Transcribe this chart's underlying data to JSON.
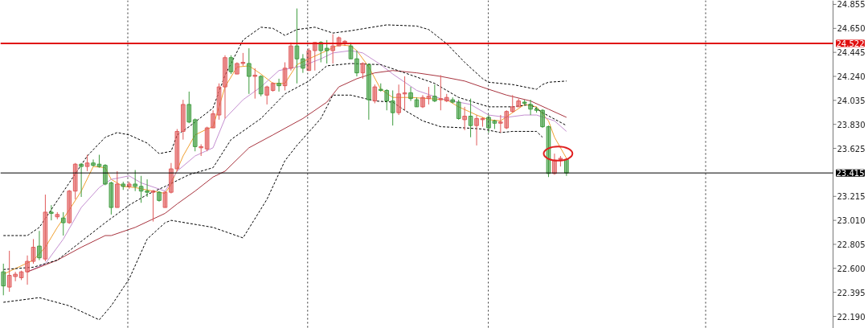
{
  "chart_data": {
    "type": "candlestick",
    "categories": [
      null,
      null,
      null,
      null,
      null,
      null,
      null,
      null,
      null,
      null,
      null,
      null,
      null,
      null,
      null,
      null,
      null,
      null,
      null,
      null,
      null,
      null,
      null,
      null,
      null,
      null,
      null,
      null,
      null,
      null,
      null,
      null,
      null,
      null,
      null,
      null,
      null,
      null,
      null,
      null,
      null,
      null,
      null,
      null,
      null,
      null,
      null,
      null,
      null,
      null,
      null,
      null,
      null,
      null,
      null,
      null,
      null,
      null,
      null,
      null,
      null,
      null,
      null,
      null,
      null,
      null,
      null,
      null,
      null,
      null,
      null,
      null,
      null,
      null,
      null,
      null,
      null,
      null,
      null,
      null,
      null,
      null,
      null,
      null,
      null,
      null,
      null,
      null,
      null,
      null,
      null,
      null,
      null,
      null,
      null,
      null,
      null,
      null,
      null,
      null,
      null,
      null,
      null,
      null,
      null,
      null,
      null,
      null,
      null,
      null,
      null,
      null,
      null,
      null,
      null,
      null,
      null,
      null,
      null,
      null,
      null,
      null,
      null,
      null,
      null,
      null,
      null,
      null,
      null,
      null,
      null,
      null,
      null,
      null,
      null,
      null,
      null,
      null,
      null
    ],
    "ohlc": [
      [
        22.57,
        22.64,
        22.37,
        22.45
      ],
      [
        22.44,
        22.75,
        22.4,
        22.54
      ],
      [
        22.53,
        22.57,
        22.49,
        22.55
      ],
      [
        22.52,
        22.58,
        22.5,
        22.57
      ],
      [
        22.57,
        22.71,
        22.46,
        22.66
      ],
      [
        22.66,
        22.85,
        22.64,
        22.78
      ],
      [
        22.79,
        22.92,
        22.67,
        22.69
      ],
      [
        22.68,
        23.23,
        22.66,
        23.08
      ],
      [
        23.08,
        23.14,
        23.01,
        23.07
      ],
      [
        23.04,
        23.08,
        23.02,
        23.06
      ],
      [
        23.03,
        23.08,
        22.88,
        22.99
      ],
      [
        22.99,
        23.27,
        22.98,
        23.26
      ],
      [
        23.26,
        23.5,
        23.19,
        23.49
      ],
      [
        23.49,
        23.5,
        23.21,
        23.47
      ],
      [
        23.47,
        23.57,
        23.43,
        23.5
      ],
      [
        23.5,
        23.53,
        23.47,
        23.48
      ],
      [
        23.49,
        23.57,
        23.46,
        23.47
      ],
      [
        23.48,
        23.49,
        23.31,
        23.32
      ],
      [
        23.33,
        23.34,
        23.06,
        23.12
      ],
      [
        23.12,
        23.43,
        23.12,
        23.32
      ],
      [
        23.32,
        23.34,
        23.27,
        23.3
      ],
      [
        23.3,
        23.34,
        23.28,
        23.32
      ],
      [
        23.32,
        23.44,
        23.26,
        23.3
      ],
      [
        23.3,
        23.39,
        23.16,
        23.26
      ],
      [
        23.26,
        23.36,
        23.21,
        23.25
      ],
      [
        23.25,
        23.27,
        23.0,
        23.26
      ],
      [
        23.25,
        23.26,
        23.17,
        23.18
      ],
      [
        23.12,
        23.26,
        23.12,
        23.25
      ],
      [
        23.25,
        23.5,
        23.24,
        23.45
      ],
      [
        23.45,
        23.79,
        23.43,
        23.77
      ],
      [
        23.77,
        24.04,
        23.7,
        24.0
      ],
      [
        24.0,
        24.11,
        23.84,
        23.85
      ],
      [
        23.87,
        23.88,
        23.6,
        23.64
      ],
      [
        23.63,
        23.66,
        23.56,
        23.64
      ],
      [
        23.62,
        23.81,
        23.6,
        23.8
      ],
      [
        23.8,
        23.95,
        23.8,
        23.92
      ],
      [
        23.91,
        24.18,
        23.87,
        24.15
      ],
      [
        24.15,
        24.42,
        23.88,
        24.4
      ],
      [
        24.4,
        24.42,
        24.26,
        24.28
      ],
      [
        24.26,
        24.36,
        24.26,
        24.35
      ],
      [
        24.35,
        24.44,
        24.33,
        24.36
      ],
      [
        24.35,
        24.48,
        24.09,
        24.24
      ],
      [
        24.24,
        24.31,
        24.05,
        24.25
      ],
      [
        24.24,
        24.25,
        24.07,
        24.09
      ],
      [
        24.08,
        24.16,
        24.0,
        24.15
      ],
      [
        24.12,
        24.19,
        24.11,
        24.18
      ],
      [
        24.18,
        24.22,
        24.11,
        24.16
      ],
      [
        24.16,
        24.36,
        24.12,
        24.31
      ],
      [
        24.31,
        24.53,
        24.29,
        24.5
      ],
      [
        24.5,
        24.82,
        24.18,
        24.39
      ],
      [
        24.39,
        24.43,
        24.27,
        24.31
      ],
      [
        24.29,
        24.48,
        24.29,
        24.46
      ],
      [
        24.46,
        24.53,
        24.29,
        24.53
      ],
      [
        24.53,
        24.54,
        24.36,
        24.46
      ],
      [
        24.48,
        24.55,
        24.35,
        24.46
      ],
      [
        24.46,
        24.6,
        24.35,
        24.5
      ],
      [
        24.5,
        24.58,
        24.5,
        24.57
      ],
      [
        24.53,
        24.55,
        24.5,
        24.54
      ],
      [
        24.5,
        24.53,
        24.39,
        24.39
      ],
      [
        24.39,
        24.46,
        24.24,
        24.27
      ],
      [
        24.27,
        24.36,
        24.22,
        24.35
      ],
      [
        24.34,
        24.35,
        23.87,
        24.04
      ],
      [
        24.03,
        24.17,
        24.01,
        24.15
      ],
      [
        24.13,
        24.18,
        24.11,
        24.12
      ],
      [
        24.12,
        24.13,
        23.95,
        24.03
      ],
      [
        24.03,
        24.12,
        23.82,
        23.93
      ],
      [
        23.93,
        24.17,
        23.91,
        24.09
      ],
      [
        24.09,
        24.24,
        23.95,
        24.1
      ],
      [
        24.1,
        24.15,
        24.03,
        24.05
      ],
      [
        24.04,
        24.06,
        23.98,
        23.98
      ],
      [
        23.98,
        24.08,
        23.97,
        24.06
      ],
      [
        24.05,
        24.15,
        24.0,
        24.07
      ],
      [
        24.07,
        24.17,
        24.02,
        24.03
      ],
      [
        24.04,
        24.25,
        23.95,
        24.05
      ],
      [
        24.03,
        24.09,
        24.02,
        24.06
      ],
      [
        24.04,
        24.06,
        24.01,
        24.02
      ],
      [
        24.02,
        24.04,
        23.87,
        23.88
      ],
      [
        23.87,
        23.98,
        23.78,
        23.9
      ],
      [
        23.9,
        24.05,
        23.72,
        23.82
      ],
      [
        23.82,
        23.91,
        23.65,
        23.88
      ],
      [
        23.87,
        23.89,
        23.81,
        23.88
      ],
      [
        23.89,
        23.91,
        23.76,
        23.8
      ],
      [
        23.86,
        23.87,
        23.79,
        23.84
      ],
      [
        23.84,
        23.91,
        23.76,
        23.85
      ],
      [
        23.8,
        23.95,
        23.79,
        23.94
      ],
      [
        23.94,
        24.08,
        23.93,
        23.98
      ],
      [
        23.98,
        24.05,
        23.98,
        24.03
      ],
      [
        24.02,
        24.04,
        23.99,
        24.01
      ],
      [
        24.0,
        24.04,
        23.91,
        23.96
      ],
      [
        23.96,
        23.98,
        23.93,
        23.95
      ],
      [
        23.95,
        23.96,
        23.8,
        23.81
      ],
      [
        23.81,
        23.82,
        23.38,
        23.41
      ],
      [
        23.41,
        23.58,
        23.4,
        23.52
      ],
      [
        23.53,
        23.56,
        23.47,
        23.54
      ],
      [
        23.53,
        23.54,
        23.39,
        23.415
      ],
      null,
      null,
      null,
      null,
      null,
      null,
      null,
      null,
      null,
      null,
      null,
      null,
      null,
      null,
      null,
      null,
      null,
      null,
      null,
      null,
      null,
      null,
      null,
      null,
      null,
      null,
      null,
      null,
      null,
      null,
      null,
      null,
      null,
      null,
      null,
      null,
      null,
      null,
      null,
      null,
      null,
      null,
      null,
      null
    ],
    "colors": [
      "#3d9b3d",
      "#e05a5a",
      "#e05a5a",
      "#e05a5a",
      "#e05a5a",
      "#e05a5a",
      "#3d9b3d",
      "#e05a5a",
      "#3d9b3d",
      "#e05a5a",
      "#3d9b3d",
      "#e05a5a",
      "#e05a5a",
      "#3d9b3d",
      "#e05a5a",
      "#3d9b3d",
      "#3d9b3d",
      "#3d9b3d",
      "#3d9b3d",
      "#e05a5a",
      "#3d9b3d",
      "#e05a5a",
      "#3d9b3d",
      "#3d9b3d",
      "#3d9b3d",
      "#e05a5a",
      "#3d9b3d",
      "#e05a5a",
      "#e05a5a",
      "#e05a5a",
      "#e05a5a",
      "#3d9b3d",
      "#3d9b3d",
      "#e05a5a",
      "#e05a5a",
      "#e05a5a",
      "#e05a5a",
      "#e05a5a",
      "#3d9b3d",
      "#e05a5a",
      "#e05a5a",
      "#3d9b3d",
      "#e05a5a",
      "#3d9b3d",
      "#e05a5a",
      "#e05a5a",
      "#3d9b3d",
      "#e05a5a",
      "#e05a5a",
      "#3d9b3d",
      "#3d9b3d",
      "#e05a5a",
      "#e05a5a",
      "#3d9b3d",
      "#3d9b3d",
      "#e05a5a",
      "#e05a5a",
      "#e05a5a",
      "#3d9b3d",
      "#3d9b3d",
      "#e05a5a",
      "#3d9b3d",
      "#e05a5a",
      "#3d9b3d",
      "#3d9b3d",
      "#3d9b3d",
      "#e05a5a",
      "#e05a5a",
      "#3d9b3d",
      "#3d9b3d",
      "#e05a5a",
      "#e05a5a",
      "#3d9b3d",
      "#e05a5a",
      "#e05a5a",
      "#3d9b3d",
      "#3d9b3d",
      "#e05a5a",
      "#3d9b3d",
      "#e05a5a",
      "#e05a5a",
      "#3d9b3d",
      "#3d9b3d",
      "#e05a5a",
      "#e05a5a",
      "#e05a5a",
      "#e05a5a",
      "#3d9b3d",
      "#3d9b3d",
      "#3d9b3d",
      "#3d9b3d",
      "#3d9b3d",
      "#e05a5a",
      "#e05a5a",
      "#3d9b3d",
      null,
      null,
      null,
      null,
      null,
      null,
      null,
      null,
      null,
      null,
      null,
      null,
      null,
      null,
      null,
      null,
      null,
      null,
      null,
      null,
      null,
      null,
      null,
      null,
      null,
      null,
      null,
      null,
      null,
      null,
      null,
      null,
      null,
      null,
      null,
      null,
      null,
      null,
      null,
      null,
      null,
      null,
      null,
      null
    ],
    "series": [
      {
        "type": "line",
        "color": "#f0a030",
        "line_style": "solid",
        "values": [
          22.55,
          null,
          null,
          null,
          null,
          22.67,
          null,
          22.78,
          null,
          22.95,
          null,
          23.1,
          null,
          23.26,
          null,
          23.47,
          null,
          23.46,
          23.36,
          null,
          23.3,
          null,
          23.29,
          null,
          null,
          23.26,
          null,
          23.24,
          23.32,
          null,
          23.56,
          null,
          23.74,
          null,
          23.79,
          23.81,
          null,
          24.15,
          null,
          24.32,
          null,
          24.33,
          null,
          24.26,
          null,
          24.18,
          null,
          24.18,
          null,
          24.34,
          null,
          24.39,
          null,
          null,
          24.46,
          null,
          24.51,
          null,
          24.5,
          24.46,
          null,
          24.32,
          null,
          24.13,
          null,
          24.06,
          null,
          null,
          24.06,
          null,
          null,
          24.05,
          null,
          null,
          24.04,
          null,
          23.98,
          null,
          null,
          23.91,
          null,
          23.87,
          null,
          23.86,
          null,
          23.93,
          null,
          24.0,
          null,
          23.98,
          null,
          23.86,
          23.72,
          null,
          23.54,
          null,
          null,
          null,
          null,
          null,
          null,
          null,
          null,
          null,
          null,
          null,
          null,
          null,
          null,
          null,
          null,
          null,
          null,
          null,
          null,
          null,
          null,
          null,
          null,
          null,
          null,
          null,
          null,
          null,
          null,
          null,
          null,
          null,
          null,
          null,
          null,
          null,
          null,
          null,
          null,
          null,
          null,
          null,
          null
        ]
      },
      {
        "type": "line",
        "color": "#c48fd0",
        "line_style": "solid",
        "values": [
          null,
          null,
          null,
          null,
          22.57,
          null,
          null,
          22.64,
          null,
          null,
          22.85,
          null,
          null,
          23.12,
          null,
          null,
          23.29,
          null,
          23.36,
          null,
          null,
          23.39,
          null,
          23.33,
          null,
          null,
          null,
          23.26,
          null,
          23.43,
          null,
          null,
          23.56,
          null,
          null,
          23.63,
          null,
          23.88,
          null,
          null,
          24.04,
          null,
          null,
          24.15,
          null,
          null,
          24.29,
          null,
          null,
          null,
          24.33,
          null,
          null,
          24.39,
          null,
          24.44,
          null,
          null,
          24.46,
          null,
          24.44,
          null,
          null,
          24.34,
          null,
          24.26,
          null,
          null,
          null,
          24.12,
          null,
          null,
          null,
          24.05,
          null,
          null,
          null,
          null,
          24.0,
          null,
          null,
          23.91,
          null,
          null,
          23.89,
          null,
          null,
          23.91,
          null,
          23.91,
          null,
          null,
          23.86,
          null,
          23.77,
          null,
          null,
          null,
          null,
          null,
          null,
          null,
          null,
          null,
          null,
          null,
          null,
          null,
          null,
          null,
          null,
          null,
          null,
          null,
          null,
          null,
          null,
          null,
          null,
          null,
          null,
          null,
          null,
          null,
          null,
          null,
          null,
          null,
          null,
          null,
          null,
          null,
          null,
          null,
          null,
          null,
          null,
          null,
          null
        ]
      },
      {
        "type": "line",
        "color": "#a8343f",
        "line_style": "solid",
        "values": [
          null,
          null,
          null,
          null,
          22.57,
          null,
          null,
          null,
          null,
          22.67,
          null,
          null,
          null,
          22.78,
          null,
          null,
          null,
          22.88,
          22.88,
          null,
          null,
          null,
          22.95,
          null,
          null,
          null,
          null,
          23.07,
          null,
          23.15,
          null,
          null,
          23.26,
          null,
          null,
          23.38,
          null,
          23.43,
          null,
          null,
          null,
          23.63,
          null,
          null,
          null,
          23.74,
          null,
          null,
          null,
          null,
          23.88,
          null,
          null,
          null,
          24.02,
          null,
          24.15,
          null,
          null,
          24.22,
          null,
          null,
          24.27,
          null,
          null,
          24.29,
          null,
          null,
          null,
          24.27,
          null,
          null,
          null,
          24.24,
          null,
          null,
          null,
          24.2,
          null,
          null,
          null,
          24.13,
          null,
          null,
          24.08,
          null,
          null,
          null,
          24.03,
          null,
          null,
          23.96,
          null,
          null,
          23.89,
          null,
          null,
          null,
          null,
          null,
          null,
          null,
          null,
          null,
          null,
          null,
          null,
          null,
          null,
          null,
          null,
          null,
          null,
          null,
          null,
          null,
          null,
          null,
          null,
          null,
          null,
          null,
          null,
          null,
          null,
          null,
          null,
          null,
          null,
          null,
          null,
          null,
          null,
          null,
          null,
          null,
          null,
          null,
          null
        ]
      },
      {
        "type": "line",
        "color": "#000000",
        "line_style": "dashed",
        "values": [
          22.88,
          null,
          null,
          null,
          22.88,
          null,
          22.95,
          null,
          null,
          null,
          null,
          null,
          null,
          null,
          23.56,
          null,
          null,
          23.72,
          null,
          23.76,
          null,
          23.74,
          null,
          null,
          23.67,
          null,
          23.58,
          null,
          23.6,
          23.74,
          null,
          23.81,
          null,
          null,
          null,
          23.97,
          null,
          24.25,
          null,
          null,
          24.55,
          null,
          null,
          24.66,
          null,
          24.65,
          null,
          24.59,
          null,
          24.64,
          null,
          null,
          24.66,
          null,
          null,
          24.61,
          null,
          null,
          24.63,
          null,
          null,
          null,
          null,
          null,
          24.68,
          null,
          null,
          null,
          null,
          24.67,
          null,
          24.64,
          null,
          null,
          24.52,
          null,
          null,
          24.36,
          null,
          null,
          24.22,
          24.19,
          null,
          null,
          null,
          24.17,
          null,
          null,
          null,
          24.13,
          24.17,
          24.19,
          null,
          null,
          24.2,
          null,
          null,
          null,
          null,
          null,
          null,
          null,
          null,
          null,
          null,
          null,
          null,
          null,
          null,
          null,
          null,
          null,
          null,
          null,
          null,
          null,
          null,
          null,
          null,
          null,
          null,
          null,
          null,
          null,
          null,
          null,
          null,
          null,
          null,
          null,
          null,
          null,
          null,
          null,
          null,
          null,
          null,
          null,
          null
        ]
      },
      {
        "type": "line",
        "color": "#000000",
        "line_style": "dashed",
        "values": [
          22.59,
          null,
          null,
          null,
          null,
          22.61,
          null,
          null,
          null,
          22.67,
          null,
          null,
          null,
          22.83,
          null,
          null,
          null,
          22.99,
          null,
          null,
          null,
          23.14,
          null,
          null,
          23.23,
          null,
          null,
          23.3,
          null,
          null,
          null,
          23.4,
          null,
          null,
          null,
          23.46,
          null,
          null,
          23.7,
          null,
          null,
          null,
          null,
          23.88,
          null,
          null,
          null,
          24.09,
          null,
          null,
          null,
          24.2,
          null,
          null,
          24.33,
          null,
          null,
          null,
          24.35,
          null,
          null,
          null,
          null,
          24.34,
          null,
          null,
          null,
          24.27,
          null,
          null,
          null,
          null,
          24.18,
          null,
          null,
          null,
          24.06,
          null,
          null,
          null,
          null,
          23.98,
          null,
          null,
          null,
          23.98,
          null,
          null,
          24.0,
          null,
          23.93,
          null,
          null,
          null,
          23.82,
          null,
          null,
          null,
          null,
          null,
          null,
          null,
          null,
          null,
          null,
          null,
          null,
          null,
          null,
          null,
          null,
          null,
          null,
          null,
          null,
          null,
          null,
          null,
          null,
          null,
          null,
          null,
          null,
          null,
          null,
          null,
          null,
          null,
          null,
          null,
          null,
          null,
          null,
          null,
          null,
          null,
          null,
          null,
          null
        ]
      },
      {
        "type": "line",
        "color": "#000000",
        "line_style": "dashed",
        "values": [
          22.31,
          null,
          null,
          null,
          null,
          null,
          22.35,
          null,
          null,
          null,
          null,
          22.28,
          null,
          null,
          null,
          null,
          22.16,
          null,
          22.28,
          null,
          null,
          22.51,
          null,
          null,
          22.85,
          null,
          null,
          22.99,
          23.01,
          null,
          null,
          null,
          null,
          null,
          null,
          22.95,
          null,
          null,
          null,
          null,
          22.86,
          null,
          null,
          null,
          23.19,
          null,
          null,
          23.52,
          null,
          23.65,
          null,
          null,
          null,
          23.88,
          null,
          24.08,
          null,
          null,
          24.08,
          null,
          null,
          null,
          24.03,
          null,
          null,
          24.02,
          null,
          23.95,
          null,
          null,
          23.86,
          null,
          null,
          23.81,
          null,
          null,
          null,
          23.8,
          null,
          null,
          23.79,
          null,
          null,
          23.76,
          null,
          23.77,
          null,
          null,
          null,
          23.77,
          23.72,
          null,
          null,
          null,
          null,
          null,
          null,
          null,
          null,
          null,
          null,
          null,
          null,
          null,
          null,
          null,
          null,
          null,
          null,
          null,
          null,
          null,
          null,
          null,
          null,
          null,
          null,
          null,
          null,
          null,
          null,
          null,
          null,
          null,
          null,
          null,
          null,
          null,
          null,
          null,
          null,
          null,
          null,
          null,
          null,
          null,
          null,
          null,
          null
        ]
      }
    ],
    "ylim": [
      22.087,
      24.889
    ],
    "yticks": [
      {
        "value": 22.19,
        "label": "22.190"
      },
      22.395,
      {
        "value": 22.6,
        "label": "22.600"
      },
      22.805,
      {
        "value": 23.01,
        "label": "23.010"
      },
      23.215,
      23.625,
      {
        "value": 23.83,
        "label": "23.830"
      },
      24.035,
      {
        "value": 24.24,
        "label": "24.240"
      },
      24.445,
      {
        "value": 24.65,
        "label": "24.650"
      },
      24.855
    ],
    "tick_labels": "y",
    "ref_lines": [
      {
        "axis": "y",
        "value": 24.522,
        "label": "24.522",
        "color": "#e01010"
      },
      {
        "axis": "y",
        "value": 23.415,
        "label": "23.415",
        "color": "#000000"
      }
    ]
  }
}
